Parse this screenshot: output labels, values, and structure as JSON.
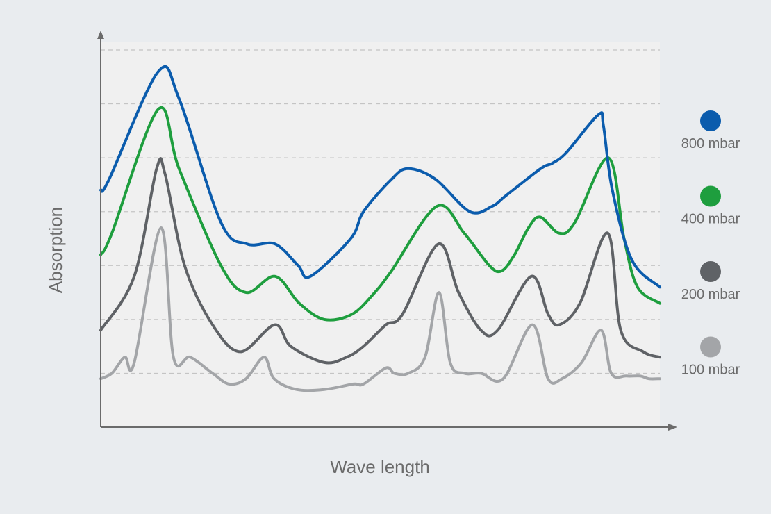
{
  "chart_data": {
    "type": "line",
    "xlabel": "Wave length",
    "ylabel": "Absorption",
    "xlim": [
      0,
      100
    ],
    "ylim": [
      0,
      7
    ],
    "grid": true,
    "legend": "right",
    "series": [
      {
        "name": "800 mbar",
        "color": "#0b5cad",
        "x": [
          0,
          1.5,
          10.3,
          14,
          21.5,
          26.2,
          31.2,
          35.3,
          37.5,
          44.7,
          47,
          52,
          55,
          59.9,
          66,
          70,
          72.5,
          78.7,
          80.8,
          83.3,
          89,
          89.9,
          91.5,
          95,
          100
        ],
        "y": [
          4.4,
          4.6,
          6.6,
          6.1,
          3.8,
          3.4,
          3.4,
          3,
          2.8,
          3.5,
          4,
          4.6,
          4.8,
          4.6,
          4,
          4.1,
          4.3,
          4.8,
          4.9,
          5.1,
          5.8,
          5.6,
          4.4,
          3.1,
          2.6
        ]
      },
      {
        "name": "400 mbar",
        "color": "#1e9e3e",
        "x": [
          0,
          2,
          10.3,
          14,
          21.5,
          26,
          31.2,
          35.5,
          40,
          45,
          49,
          52,
          60.1,
          65,
          69.5,
          71.7,
          74,
          76.5,
          78.6,
          82,
          84.8,
          90.8,
          93.6,
          96,
          100
        ],
        "y": [
          3.2,
          3.6,
          5.9,
          4.8,
          3,
          2.5,
          2.8,
          2.3,
          2,
          2.1,
          2.5,
          2.9,
          4.1,
          3.6,
          3,
          2.9,
          3.2,
          3.7,
          3.9,
          3.6,
          3.8,
          5,
          3.5,
          2.6,
          2.3
        ]
      },
      {
        "name": "200 mbar",
        "color": "#5f6266",
        "x": [
          0,
          6,
          10,
          11.5,
          15,
          20,
          25,
          31.1,
          34,
          40,
          44,
          47,
          51,
          54,
          60.4,
          64,
          68,
          71,
          77,
          80,
          82,
          85.7,
          90.7,
          93,
          97,
          100
        ],
        "y": [
          1.8,
          2.8,
          4.8,
          4.7,
          3,
          1.9,
          1.4,
          1.9,
          1.5,
          1.2,
          1.3,
          1.5,
          1.9,
          2.1,
          3.4,
          2.5,
          1.8,
          1.8,
          2.8,
          2.1,
          1.9,
          2.3,
          3.6,
          1.8,
          1.4,
          1.3
        ]
      },
      {
        "name": "100 mbar",
        "color": "#a3a5a8",
        "x": [
          0,
          2,
          4.3,
          6,
          10.8,
          13,
          16,
          20,
          23,
          26,
          29.2,
          31,
          35,
          40,
          45.2,
          47,
          51,
          52.5,
          55,
          58,
          60.5,
          62.5,
          65,
          68,
          72,
          77.2,
          80,
          82.5,
          86,
          89.5,
          91.3,
          94,
          96.5,
          98,
          100
        ],
        "y": [
          0.9,
          1,
          1.3,
          1.2,
          3.7,
          1.3,
          1.3,
          1,
          0.8,
          0.9,
          1.3,
          0.9,
          0.7,
          0.7,
          0.8,
          0.8,
          1.1,
          1,
          1,
          1.3,
          2.5,
          1.2,
          1,
          1,
          0.9,
          1.9,
          0.9,
          0.9,
          1.2,
          1.8,
          1,
          0.95,
          0.95,
          0.9,
          0.9
        ]
      }
    ]
  }
}
